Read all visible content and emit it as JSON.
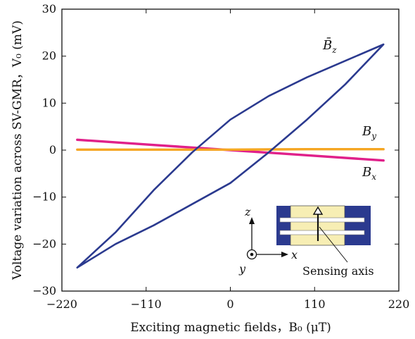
{
  "chart_data": {
    "type": "line",
    "title": "",
    "xlabel": "Exciting magnetic fields，B₀ (μT)",
    "ylabel": "Voltage variation across SV-GMR，V₀ (mV)",
    "xlim": [
      -220,
      220
    ],
    "ylim": [
      -30,
      30
    ],
    "xticks": [
      -220,
      -110,
      0,
      110,
      220
    ],
    "xtick_labels": [
      "−220",
      "−110",
      "0",
      "110",
      "220"
    ],
    "yticks": [
      -30,
      -20,
      -10,
      0,
      10,
      20,
      30
    ],
    "ytick_labels": [
      "−30",
      "−20",
      "−10",
      "0",
      "10",
      "20",
      "30"
    ],
    "grid": false,
    "series": [
      {
        "name": "B̄z",
        "label_main": "B̄",
        "label_sub": "z",
        "color": "#2b3a8f",
        "x": [
          -200,
          -150,
          -100,
          -50,
          0,
          50,
          100,
          150,
          200,
          150,
          100,
          50,
          0,
          -50,
          -100,
          -150,
          -200
        ],
        "y": [
          -25,
          -17.5,
          -8.5,
          -0.5,
          6.5,
          11.5,
          15.5,
          19,
          22.5,
          14,
          6.5,
          -0.5,
          -7,
          -11.5,
          -16,
          -20,
          -25
        ]
      },
      {
        "name": "By",
        "label_main": "B",
        "label_sub": "y",
        "color": "#f5a623",
        "x": [
          -200,
          -100,
          0,
          100,
          200
        ],
        "y": [
          0.1,
          0.1,
          0.1,
          0.2,
          0.2
        ]
      },
      {
        "name": "Bx",
        "label_main": "B",
        "label_sub": "x",
        "color": "#e0208a",
        "x": [
          -200,
          -100,
          0,
          100,
          200
        ],
        "y": [
          2.2,
          1.1,
          0,
          -1.1,
          -2.2
        ]
      }
    ],
    "inset": {
      "axis_z": "z",
      "axis_x": "x",
      "axis_y": "y",
      "annotation": "Sensing axis"
    }
  }
}
